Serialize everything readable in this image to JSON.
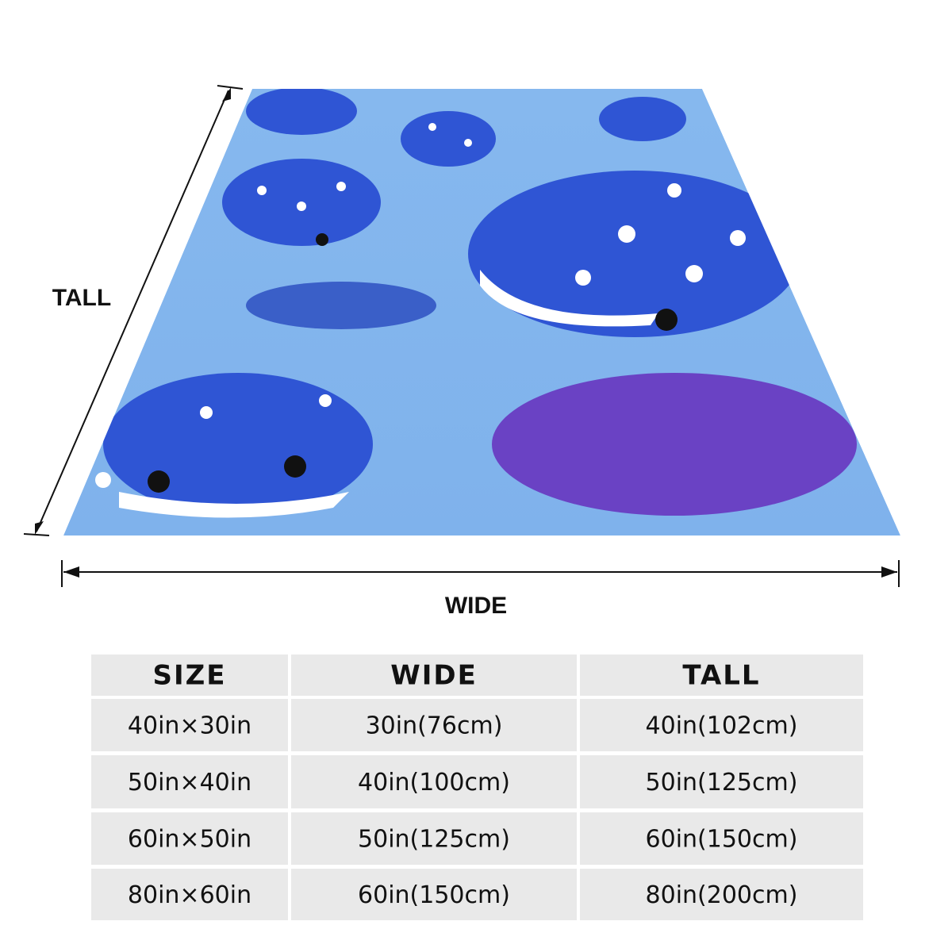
{
  "diagram": {
    "tall_label": "TALL",
    "wide_label": "WIDE"
  },
  "table": {
    "header": [
      "SIZE",
      "WIDE",
      "TALL"
    ],
    "rows": [
      [
        "40in×30in",
        "30in(76cm)",
        "40in(102cm)"
      ],
      [
        "50in×40in",
        "40in(100cm)",
        "50in(125cm)"
      ],
      [
        "60in×50in",
        "50in(125cm)",
        "60in(150cm)"
      ],
      [
        "80in×60in",
        "60in(150cm)",
        "80in(200cm)"
      ]
    ]
  }
}
